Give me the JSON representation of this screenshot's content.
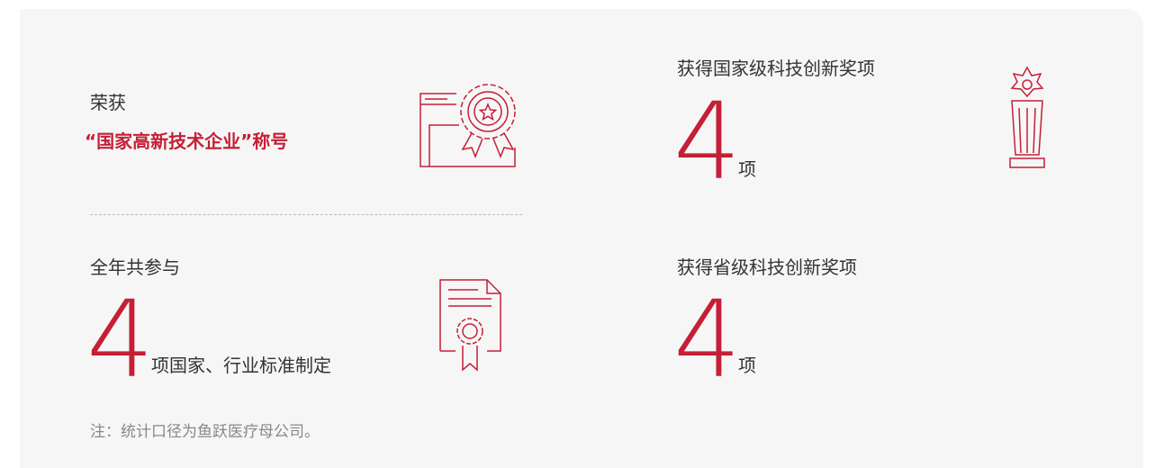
{
  "left": {
    "award": {
      "prefix": "荣获",
      "title": "“国家高新技术企业”称号"
    },
    "standards": {
      "label": "全年共参与",
      "number": 4,
      "suffix": "项国家、行业标准制定"
    },
    "note": "注：统计口径为鱼跃医疗母公司。"
  },
  "right": {
    "national": {
      "label": "获得国家级科技创新奖项",
      "number": 4,
      "unit": "项"
    },
    "provincial": {
      "label": "获得省级科技创新奖项",
      "number": 4,
      "unit": "项"
    }
  }
}
